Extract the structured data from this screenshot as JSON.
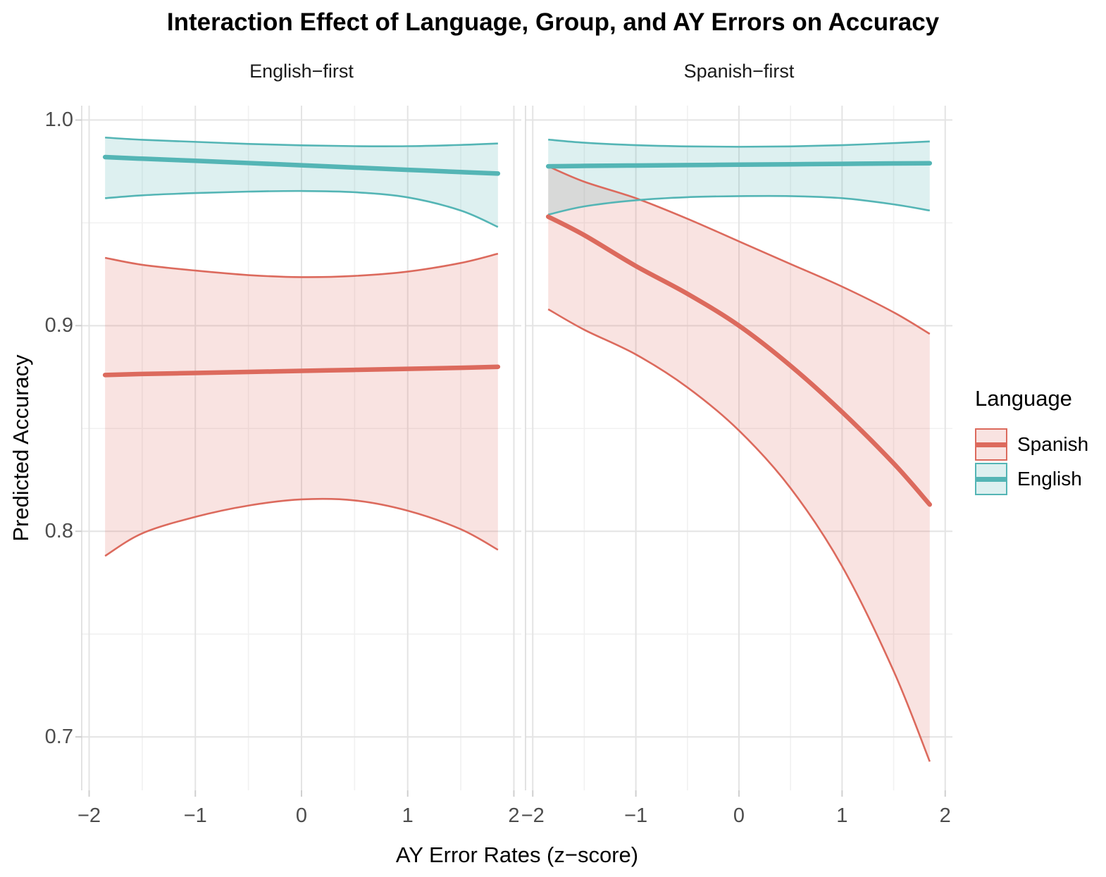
{
  "chart_data": {
    "type": "line",
    "title": "Interaction Effect of Language, Group, and AY Errors on Accuracy",
    "xlabel": "AY Error Rates (z−score)",
    "ylabel": "Predicted Accuracy",
    "grid": "on",
    "x_axis": {
      "tick_values": [
        -2,
        -1,
        0,
        1,
        2
      ],
      "tick_labels": [
        "−2",
        "−1",
        "0",
        "1",
        "2"
      ],
      "minor_values": [
        -1.5,
        -0.5,
        0.5,
        1.5
      ],
      "lim": [
        -2.07,
        2.07
      ]
    },
    "y_axis": {
      "tick_values": [
        1.0,
        0.9,
        0.8,
        0.7
      ],
      "tick_labels": [
        "1.0",
        "0.9",
        "0.8",
        "0.7"
      ],
      "minor_values": [
        0.95,
        0.85,
        0.75
      ],
      "lim": [
        0.674,
        1.007
      ]
    },
    "legend": {
      "title": "Language",
      "position": "right",
      "entries": [
        {
          "label": "Spanish",
          "color": "#DC6A5D",
          "fill": "rgba(221,106,93,0.19)"
        },
        {
          "label": "English",
          "color": "#54B5B5",
          "fill": "rgba(84,180,180,0.20)"
        }
      ]
    },
    "x": [
      -1.85,
      -1.5,
      -1,
      -0.5,
      0,
      0.5,
      1,
      1.5,
      1.85
    ],
    "facets": [
      {
        "label": "English−first",
        "series": [
          {
            "name": "Spanish",
            "line": [
              0.876,
              0.8765,
              0.877,
              0.8775,
              0.878,
              0.8785,
              0.879,
              0.8795,
              0.88
            ],
            "upper": [
              0.933,
              0.9296,
              0.9268,
              0.9246,
              0.9236,
              0.9242,
              0.9263,
              0.9305,
              0.935
            ],
            "lower": [
              0.788,
              0.799,
              0.807,
              0.8125,
              0.8155,
              0.815,
              0.81,
              0.801,
              0.791
            ]
          },
          {
            "name": "English",
            "line": [
              0.982,
              0.9812,
              0.9802,
              0.9791,
              0.978,
              0.9769,
              0.9758,
              0.9747,
              0.974
            ],
            "upper": [
              0.9915,
              0.9904,
              0.9894,
              0.9884,
              0.9877,
              0.9873,
              0.9873,
              0.9879,
              0.9886
            ],
            "lower": [
              0.962,
              0.9634,
              0.9645,
              0.9652,
              0.9655,
              0.9649,
              0.9624,
              0.956,
              0.948
            ]
          }
        ]
      },
      {
        "label": "Spanish−first",
        "series": [
          {
            "name": "Spanish",
            "line": [
              0.953,
              0.944,
              0.929,
              0.9155,
              0.9,
              0.8805,
              0.858,
              0.833,
              0.813
            ],
            "upper": [
              0.9775,
              0.97,
              0.962,
              0.952,
              0.941,
              0.93,
              0.919,
              0.9065,
              0.896
            ],
            "lower": [
              0.908,
              0.898,
              0.886,
              0.87,
              0.849,
              0.821,
              0.783,
              0.732,
              0.688
            ]
          },
          {
            "name": "English",
            "line": [
              0.9775,
              0.9777,
              0.9779,
              0.9781,
              0.9783,
              0.9785,
              0.9787,
              0.9789,
              0.979
            ],
            "upper": [
              0.9905,
              0.989,
              0.9878,
              0.9872,
              0.987,
              0.9872,
              0.9878,
              0.9888,
              0.9896
            ],
            "lower": [
              0.954,
              0.958,
              0.961,
              0.9625,
              0.963,
              0.963,
              0.962,
              0.959,
              0.956
            ]
          }
        ]
      }
    ]
  }
}
